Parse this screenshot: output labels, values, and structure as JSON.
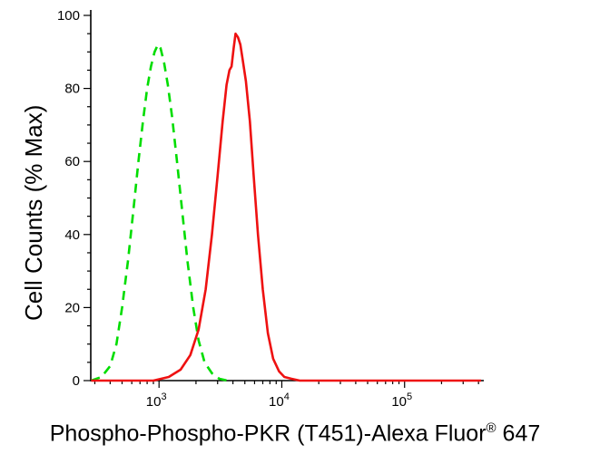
{
  "figure": {
    "ylabel": "Cell Counts (% Max)",
    "xlabel_main": "Phospho-Phospho-PKR (T451)-Alexa Fluor",
    "xlabel_reg": "®",
    "xlabel_suffix": " 647"
  },
  "chart_data": {
    "type": "line",
    "title": "",
    "xlabel": "Phospho-Phospho-PKR (T451)-Alexa Fluor® 647",
    "ylabel": "Cell Counts (% Max)",
    "x_scale": "log10",
    "xlim": [
      278,
      427000
    ],
    "ylim": [
      0,
      100
    ],
    "yticks": [
      0,
      20,
      40,
      60,
      80,
      100
    ],
    "y_minor_tick_step": 5,
    "xticks": [
      1000,
      10000,
      100000
    ],
    "grid": false,
    "legend": "none",
    "axis_color": "#000000",
    "background": "#ffffff",
    "series": [
      {
        "name": "green-dashed",
        "color": "#00dd00",
        "line_style": "dashed",
        "x": [
          280,
          340,
          400,
          450,
          500,
          560,
          620,
          680,
          740,
          800,
          860,
          920,
          980,
          1030,
          1100,
          1180,
          1280,
          1400,
          1550,
          1700,
          1900,
          2100,
          2350,
          2700,
          3100,
          3600
        ],
        "y": [
          0,
          1,
          4,
          10,
          20,
          33,
          47,
          60,
          71,
          80,
          86,
          90,
          92,
          91,
          87,
          81,
          72,
          60,
          46,
          33,
          20,
          11,
          5,
          2,
          0.5,
          0
        ]
      },
      {
        "name": "red-solid",
        "color": "#ee1111",
        "line_style": "solid",
        "x": [
          280,
          900,
          1200,
          1500,
          1800,
          2100,
          2400,
          2700,
          3000,
          3300,
          3550,
          3750,
          3900,
          4050,
          4200,
          4400,
          4600,
          4800,
          5100,
          5500,
          5900,
          6400,
          7000,
          7700,
          8500,
          9500,
          10500,
          12000,
          14000,
          420000
        ],
        "y": [
          0,
          0,
          1,
          3,
          7,
          14,
          25,
          40,
          56,
          71,
          81,
          85,
          86,
          91,
          95,
          94,
          92,
          88,
          82,
          71,
          56,
          40,
          25,
          13,
          6,
          2.5,
          1,
          0.5,
          0,
          0
        ]
      }
    ]
  }
}
